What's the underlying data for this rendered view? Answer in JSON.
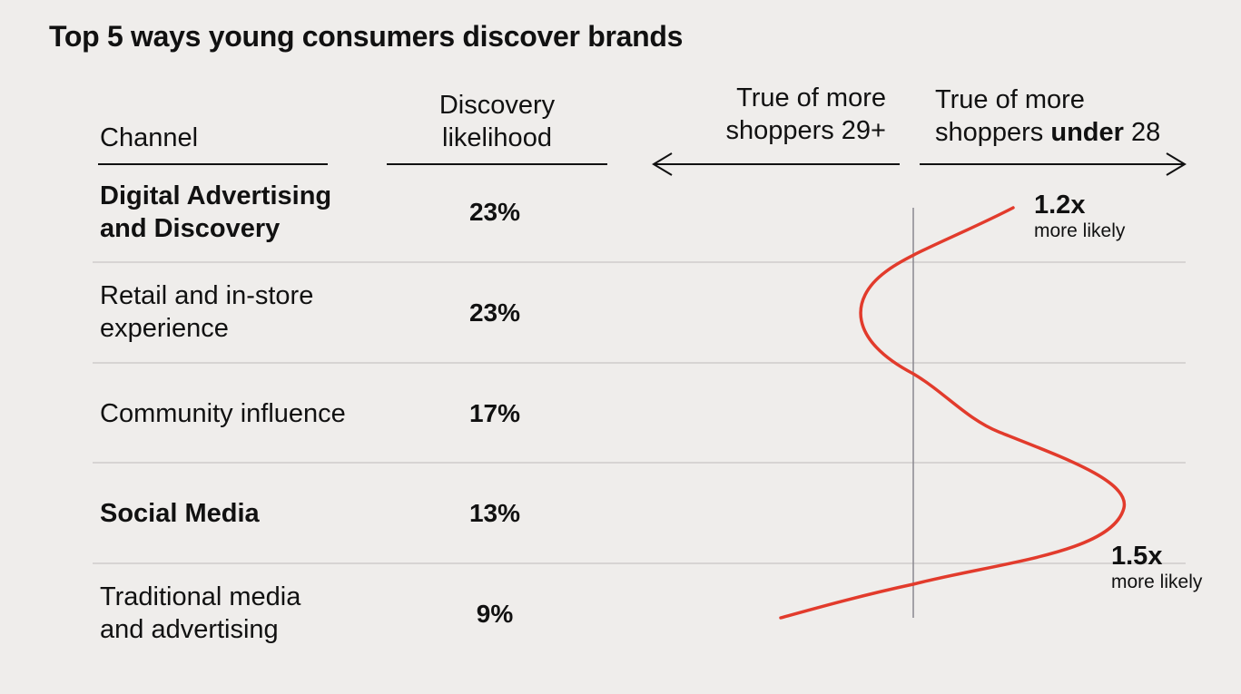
{
  "title": "Top 5 ways young consumers discover brands",
  "headers": {
    "channel": "Channel",
    "likelihood_line1": "Discovery",
    "likelihood_line2": "likelihood",
    "older_line1": "True of more",
    "older_line2": "shoppers 29+",
    "younger_line1": "True of more",
    "younger_line2_pre": "shoppers",
    "younger_line2_bold": "under",
    "younger_line2_post": "28"
  },
  "rows": [
    {
      "line1": "Digital Advertising",
      "line2": "and Discovery",
      "value": "23%"
    },
    {
      "line1": "Retail and in-store",
      "line2": "experience",
      "value": "23%"
    },
    {
      "line1": "Community influence",
      "line2": "",
      "value": "17%"
    },
    {
      "line1": "Social Media",
      "line2": "",
      "value": "13%"
    },
    {
      "line1": "Traditional media",
      "line2": "and advertising",
      "value": "9%"
    }
  ],
  "annotations": [
    {
      "multiplier": "1.2x",
      "text": "more likely"
    },
    {
      "multiplier": "1.5x",
      "text": "more likely"
    }
  ],
  "colors": {
    "background": "#efedeb",
    "curve": "#e23b2c",
    "text": "#111111",
    "divider": "#cfcccb",
    "axis": "#8a8890"
  },
  "chart_data": {
    "type": "table",
    "title": "Top 5 ways young consumers discover brands",
    "columns": [
      "Channel",
      "Discovery likelihood"
    ],
    "categories": [
      "Digital Advertising and Discovery",
      "Retail and in-store experience",
      "Community influence",
      "Social Media",
      "Traditional media and advertising"
    ],
    "values": [
      23,
      23,
      17,
      13,
      9
    ],
    "unit": "%",
    "skew_axis": {
      "left_label": "True of more shoppers 29+",
      "right_label": "True of more shoppers under 28"
    },
    "annotations": [
      {
        "category": "Digital Advertising and Discovery",
        "multiplier": "1.2x",
        "text": "more likely"
      },
      {
        "category": "Social Media",
        "multiplier": "1.5x",
        "text": "more likely"
      }
    ]
  }
}
